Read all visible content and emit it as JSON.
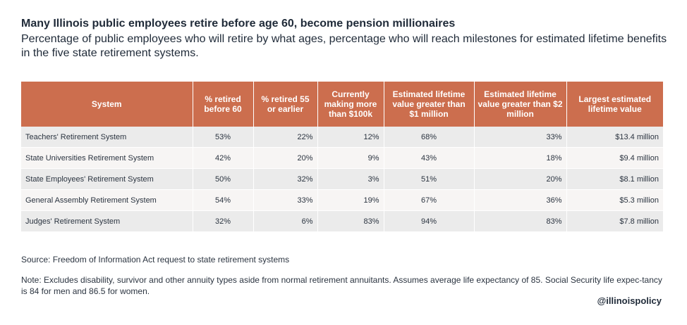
{
  "title": "Many Illinois public employees retire before age 60, become pension millionaires",
  "subtitle": "Percentage of public employees who will retire by what ages, percentage who will reach milestones for estimated lifetime benefits in the five state retirement systems.",
  "chart_data": {
    "type": "table",
    "columns": [
      "System",
      "% retired before 60",
      "% retired 55 or earlier",
      "Currently making more than $100k",
      "Estimated lifetime value greater than $1 million",
      "Estimated lifetime value greater than $2 million",
      "Largest estimated lifetime value"
    ],
    "rows": [
      [
        "Teachers' Retirement System",
        "53%",
        "22%",
        "12%",
        "68%",
        "33%",
        "$13.4 million"
      ],
      [
        "State Universities Retirement System",
        "42%",
        "20%",
        "9%",
        "43%",
        "18%",
        "$9.4 million"
      ],
      [
        "State Employees' Retirement System",
        "50%",
        "32%",
        "3%",
        "51%",
        "20%",
        "$8.1 million"
      ],
      [
        "General Assembly Retirement System",
        "54%",
        "33%",
        "19%",
        "67%",
        "36%",
        "$5.3 million"
      ],
      [
        "Judges' Retirement System",
        "32%",
        "6%",
        "83%",
        "94%",
        "83%",
        "$7.8 million"
      ]
    ]
  },
  "source": "Source: Freedom of Information Act request to state retirement systems",
  "note": "Note: Excludes disability, survivor and other annuity types aside from normal retirement annuitants. Assumes average life expectancy of 85. Social Security life expec-tancy is 84 for men and 86.5 for women.",
  "handle": "@illinoispolicy",
  "colors": {
    "header_bg": "#cc6e4e",
    "row_odd": "#ebebeb",
    "row_even": "#f7f5f4",
    "text": "#1f2a38"
  }
}
